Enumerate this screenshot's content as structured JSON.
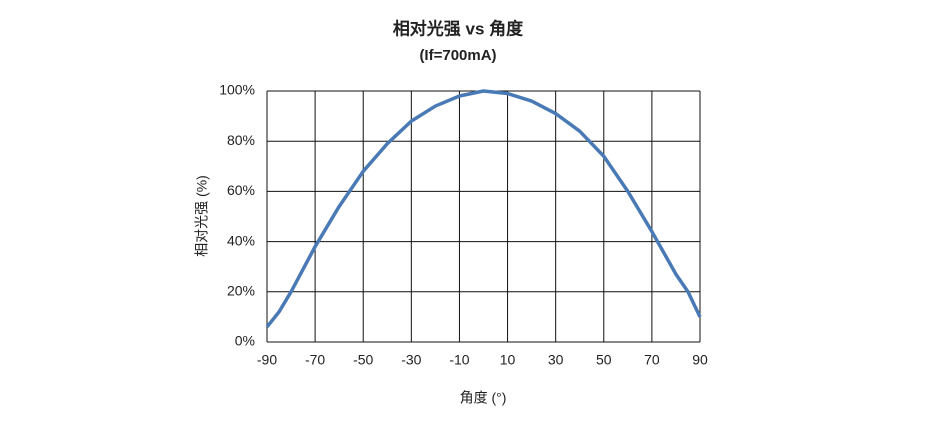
{
  "chart_data": {
    "type": "line",
    "title": "相对光强 vs 角度",
    "subtitle": "(If=700mA)",
    "x_label": "角度 (°)",
    "y_label": "相对光强 (%)",
    "x": [
      -90,
      -85,
      -80,
      -70,
      -60,
      -50,
      -40,
      -30,
      -20,
      -10,
      0,
      10,
      20,
      30,
      40,
      50,
      60,
      70,
      80,
      85,
      90
    ],
    "series": [
      {
        "color": "#4a7ab5",
        "values": [
          6,
          12,
          20,
          38,
          54,
          68,
          79,
          88,
          94,
          98,
          100,
          99,
          96,
          91,
          84,
          74,
          60,
          44,
          27,
          20,
          10
        ]
      }
    ],
    "xlim": [
      -90,
      90
    ],
    "xticks": [
      -90,
      -70,
      -50,
      -30,
      -10,
      10,
      30,
      50,
      70,
      90
    ],
    "ylim": [
      0,
      100
    ],
    "yticks": [
      {
        "value": 0,
        "label": "0%"
      },
      {
        "value": 20,
        "label": "20%"
      },
      {
        "value": 40,
        "label": "40%"
      },
      {
        "value": 60,
        "label": "60%"
      },
      {
        "value": 80,
        "label": "80%"
      },
      {
        "value": 100,
        "label": "100%"
      }
    ],
    "grid": true
  }
}
